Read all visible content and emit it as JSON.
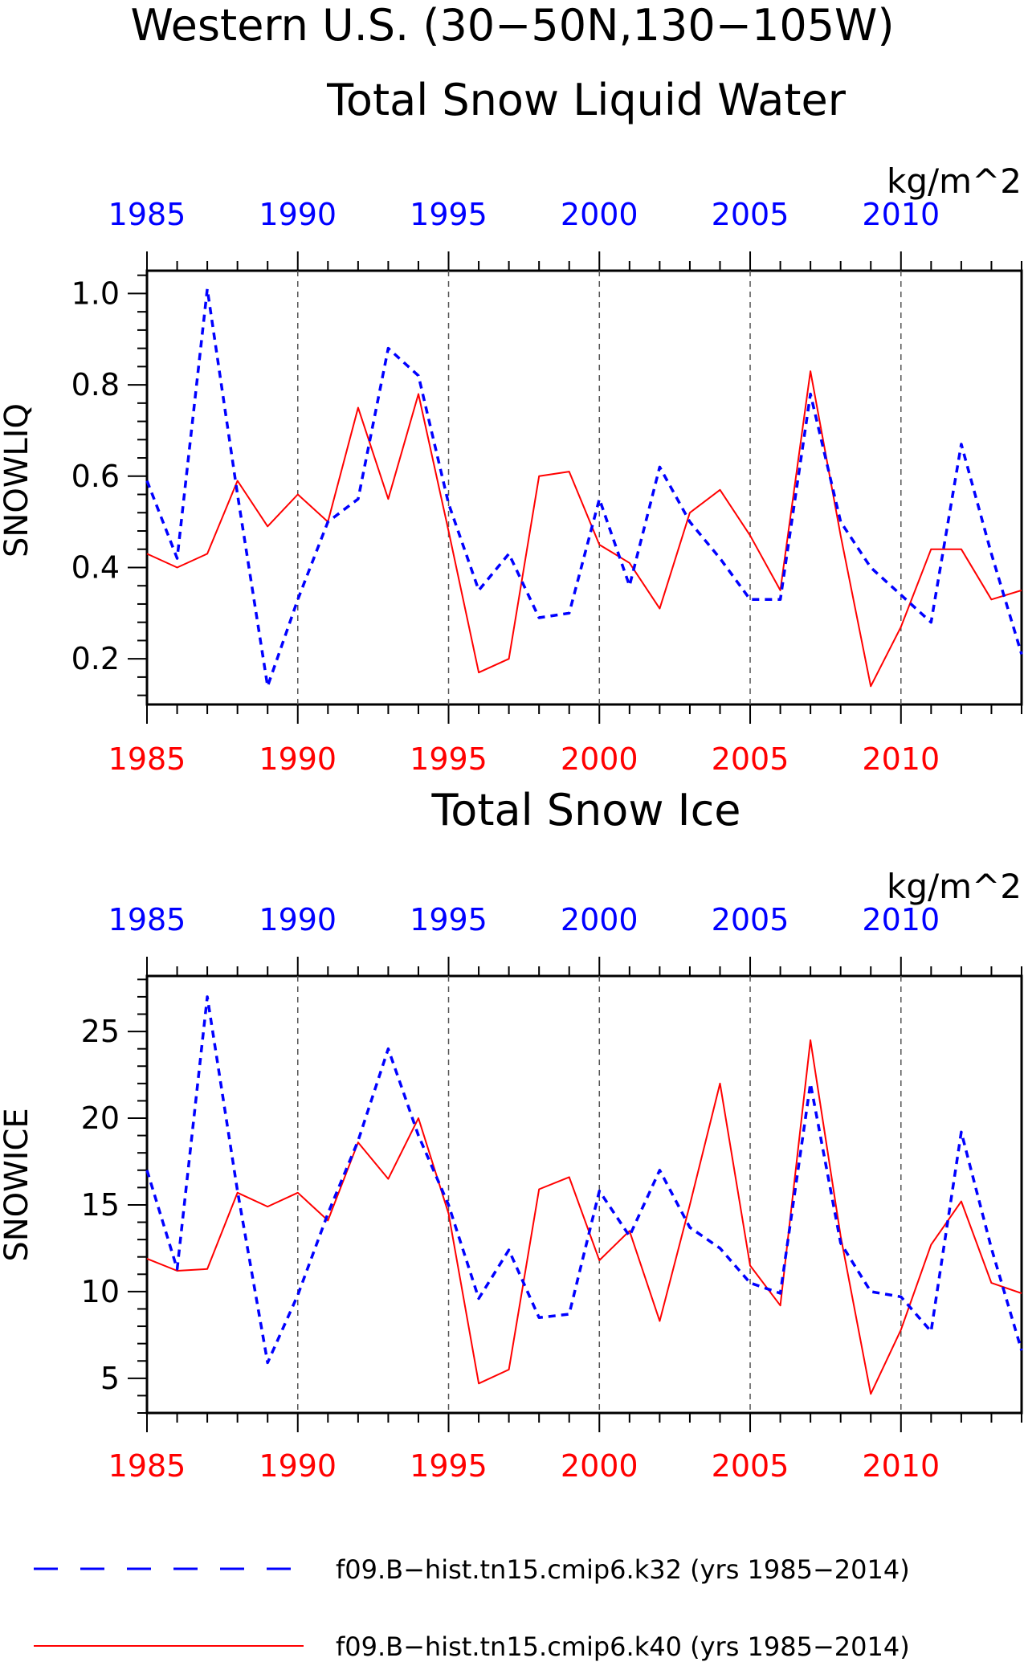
{
  "figure": {
    "title_line1": "Western U.S. (30−50N,130−105W)",
    "legend": [
      {
        "label": "f09.B−hist.tn15.cmip6.k32 (yrs 1985−2014)",
        "color": "#0000ff",
        "style": "dashed"
      },
      {
        "label": "f09.B−hist.tn15.cmip6.k40 (yrs 1985−2014)",
        "color": "#ff0000",
        "style": "solid"
      }
    ]
  },
  "colors": {
    "k32": "#0000ff",
    "k40": "#ff0000",
    "axis": "#000000",
    "grid": "#555555"
  },
  "chart_data": [
    {
      "type": "line",
      "title": "Total Snow Liquid Water",
      "units": "kg/m^2",
      "ylabel": "SNOWLIQ",
      "x": [
        1985,
        1986,
        1987,
        1988,
        1989,
        1990,
        1991,
        1992,
        1993,
        1994,
        1995,
        1996,
        1997,
        1998,
        1999,
        2000,
        2001,
        2002,
        2003,
        2004,
        2005,
        2006,
        2007,
        2008,
        2009,
        2010,
        2011,
        2012,
        2013,
        2014
      ],
      "xlim": [
        1985,
        2014
      ],
      "ylim": [
        0.1,
        1.05
      ],
      "yticks": [
        0.2,
        0.4,
        0.6,
        0.8,
        1.0
      ],
      "ytick_labels": [
        "0.2",
        "0.4",
        "0.6",
        "0.8",
        "1.0"
      ],
      "xticks": [
        1985,
        1990,
        1995,
        2000,
        2005,
        2010
      ],
      "xtick_labels": [
        "1985",
        "1990",
        "1995",
        "2000",
        "2005",
        "2010"
      ],
      "grid": "dashed vertical lines at 1990, 1995, 2000, 2005, 2010",
      "series": [
        {
          "name": "f09.B−hist.tn15.cmip6.k32 (yrs 1985−2014)",
          "color": "#0000ff",
          "style": "dashed",
          "values": [
            0.59,
            0.42,
            1.01,
            0.56,
            0.14,
            0.33,
            0.5,
            0.55,
            0.88,
            0.82,
            0.54,
            0.35,
            0.43,
            0.29,
            0.3,
            0.55,
            0.36,
            0.62,
            0.5,
            0.42,
            0.33,
            0.33,
            0.78,
            0.5,
            0.4,
            0.34,
            0.28,
            0.67,
            0.43,
            0.21
          ]
        },
        {
          "name": "f09.B−hist.tn15.cmip6.k40 (yrs 1985−2014)",
          "color": "#ff0000",
          "style": "solid",
          "values": [
            0.43,
            0.4,
            0.43,
            0.59,
            0.49,
            0.56,
            0.5,
            0.75,
            0.55,
            0.78,
            0.48,
            0.17,
            0.2,
            0.6,
            0.61,
            0.45,
            0.41,
            0.31,
            0.52,
            0.57,
            0.47,
            0.35,
            0.83,
            0.47,
            0.14,
            0.27,
            0.44,
            0.44,
            0.33,
            0.35
          ]
        }
      ]
    },
    {
      "type": "line",
      "title": "Total Snow Ice",
      "units": "kg/m^2",
      "ylabel": "SNOWICE",
      "x": [
        1985,
        1986,
        1987,
        1988,
        1989,
        1990,
        1991,
        1992,
        1993,
        1994,
        1995,
        1996,
        1997,
        1998,
        1999,
        2000,
        2001,
        2002,
        2003,
        2004,
        2005,
        2006,
        2007,
        2008,
        2009,
        2010,
        2011,
        2012,
        2013,
        2014
      ],
      "xlim": [
        1985,
        2014
      ],
      "ylim": [
        3,
        28.2
      ],
      "yticks": [
        5,
        10,
        15,
        20,
        25
      ],
      "ytick_labels": [
        "5",
        "10",
        "15",
        "20",
        "25"
      ],
      "xticks": [
        1985,
        1990,
        1995,
        2000,
        2005,
        2010
      ],
      "xtick_labels": [
        "1985",
        "1990",
        "1995",
        "2000",
        "2005",
        "2010"
      ],
      "grid": "dashed vertical lines at 1990, 1995, 2000, 2005, 2010",
      "series": [
        {
          "name": "f09.B−hist.tn15.cmip6.k32 (yrs 1985−2014)",
          "color": "#0000ff",
          "style": "dashed",
          "values": [
            17.0,
            11.3,
            27.0,
            15.8,
            5.9,
            9.8,
            14.5,
            18.7,
            24.0,
            19.0,
            15.0,
            9.6,
            12.4,
            8.5,
            8.7,
            15.8,
            13.2,
            17.0,
            13.7,
            12.5,
            10.5,
            9.9,
            22.0,
            12.8,
            10.0,
            9.7,
            7.7,
            19.2,
            12.5,
            6.6
          ]
        },
        {
          "name": "f09.B−hist.tn15.cmip6.k40 (yrs 1985−2014)",
          "color": "#ff0000",
          "style": "solid",
          "values": [
            11.9,
            11.2,
            11.3,
            15.7,
            14.9,
            15.7,
            14.1,
            18.6,
            16.5,
            20.0,
            14.5,
            4.7,
            5.5,
            15.9,
            16.6,
            11.8,
            13.5,
            8.3,
            15.0,
            22.0,
            11.5,
            9.2,
            24.5,
            13.2,
            4.1,
            7.8,
            12.7,
            15.2,
            10.5,
            9.9
          ]
        }
      ]
    }
  ]
}
